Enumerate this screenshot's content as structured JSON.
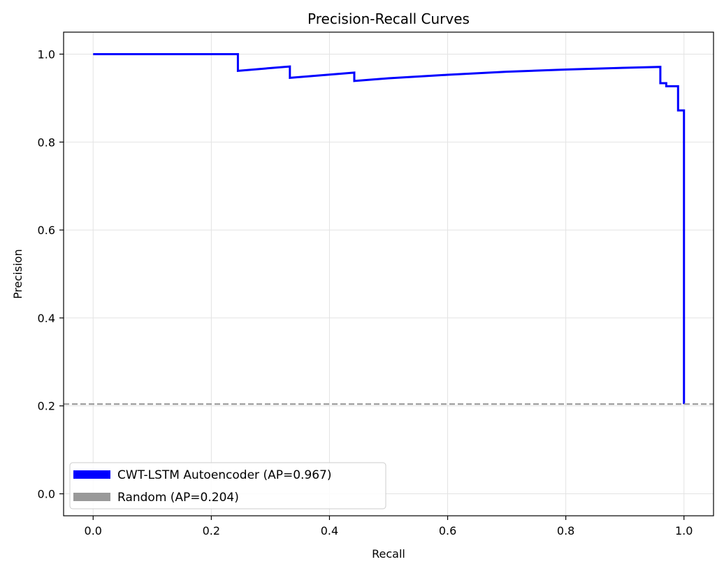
{
  "chart_data": {
    "type": "line",
    "title": "Precision-Recall Curves",
    "xlabel": "Recall",
    "ylabel": "Precision",
    "xlim": [
      -0.05,
      1.05
    ],
    "ylim": [
      -0.05,
      1.05
    ],
    "xticks": [
      0.0,
      0.2,
      0.4,
      0.6,
      0.8,
      1.0
    ],
    "yticks": [
      0.0,
      0.2,
      0.4,
      0.6,
      0.8,
      1.0
    ],
    "xtick_labels": [
      "0.0",
      "0.2",
      "0.4",
      "0.6",
      "0.8",
      "1.0"
    ],
    "ytick_labels": [
      "0.0",
      "0.2",
      "0.4",
      "0.6",
      "0.8",
      "1.0"
    ],
    "grid": true,
    "legend_position": "lower-left",
    "series": [
      {
        "name": "CWT-LSTM Autoencoder (AP=0.967)",
        "color": "#0000ff",
        "style": "solid",
        "x": [
          0.0,
          0.245,
          0.245,
          0.333,
          0.333,
          0.442,
          0.442,
          0.5,
          0.6,
          0.7,
          0.8,
          0.9,
          0.96,
          0.96,
          0.97,
          0.97,
          0.99,
          0.99,
          1.0,
          1.0
        ],
        "y": [
          1.0,
          1.0,
          0.962,
          0.972,
          0.946,
          0.958,
          0.939,
          0.945,
          0.953,
          0.96,
          0.965,
          0.969,
          0.971,
          0.934,
          0.934,
          0.927,
          0.927,
          0.872,
          0.872,
          0.204
        ]
      },
      {
        "name": "Random (AP=0.204)",
        "color": "#999999",
        "style": "dashed",
        "x": [
          -0.05,
          1.05
        ],
        "y": [
          0.204,
          0.204
        ]
      }
    ]
  }
}
